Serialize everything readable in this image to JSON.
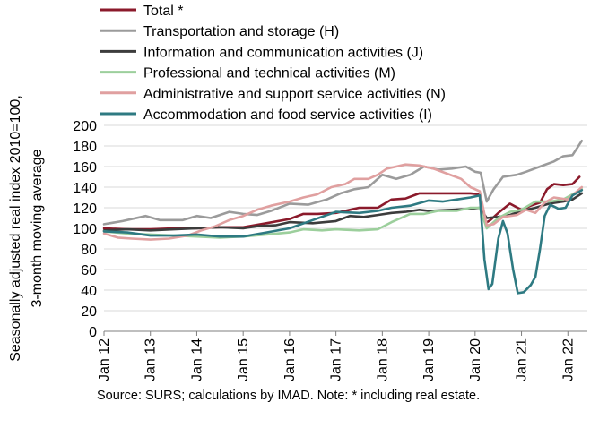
{
  "chart_data": {
    "type": "line",
    "ylabel_line1": "Seasonally adjusted real index 2010=100,",
    "ylabel_line2": "3-month moving average",
    "ylim": [
      0,
      200
    ],
    "yticks": [
      0,
      20,
      40,
      60,
      80,
      100,
      120,
      140,
      160,
      180,
      200
    ],
    "xlim": [
      2012.0,
      2022.42
    ],
    "xticks": [
      {
        "value": 2012,
        "label": "Jan 12"
      },
      {
        "value": 2013,
        "label": "Jan 13"
      },
      {
        "value": 2014,
        "label": "Jan 14"
      },
      {
        "value": 2015,
        "label": "Jan 15"
      },
      {
        "value": 2016,
        "label": "Jan 16"
      },
      {
        "value": 2017,
        "label": "Jan 17"
      },
      {
        "value": 2018,
        "label": "Jan 18"
      },
      {
        "value": 2019,
        "label": "Jan 19"
      },
      {
        "value": 2020,
        "label": "Jan 20"
      },
      {
        "value": 2021,
        "label": "Jan 21"
      },
      {
        "value": 2022,
        "label": "Jan 22"
      }
    ],
    "grid": "horizontal",
    "legend_position": "top",
    "series": [
      {
        "name": "Total *",
        "color": "#8b1a2b",
        "points": [
          [
            2012.0,
            100
          ],
          [
            2012.5,
            99
          ],
          [
            2013.0,
            99
          ],
          [
            2013.5,
            100
          ],
          [
            2014.0,
            100
          ],
          [
            2014.5,
            101
          ],
          [
            2015.0,
            101
          ],
          [
            2015.5,
            105
          ],
          [
            2016.0,
            109
          ],
          [
            2016.3,
            114
          ],
          [
            2016.6,
            114
          ],
          [
            2017.0,
            115
          ],
          [
            2017.5,
            120
          ],
          [
            2017.9,
            120
          ],
          [
            2018.2,
            128
          ],
          [
            2018.5,
            129
          ],
          [
            2018.8,
            134
          ],
          [
            2019.0,
            134
          ],
          [
            2019.5,
            134
          ],
          [
            2019.9,
            134
          ],
          [
            2020.1,
            133
          ],
          [
            2020.22,
            105
          ],
          [
            2020.33,
            108
          ],
          [
            2020.5,
            115
          ],
          [
            2020.75,
            124
          ],
          [
            2021.0,
            118
          ],
          [
            2021.2,
            122
          ],
          [
            2021.4,
            125
          ],
          [
            2021.55,
            138
          ],
          [
            2021.7,
            143
          ],
          [
            2021.9,
            142
          ],
          [
            2022.1,
            143
          ],
          [
            2022.25,
            150
          ]
        ]
      },
      {
        "name": "Transportation and storage (H)",
        "color": "#9b9b9b",
        "points": [
          [
            2012.0,
            104
          ],
          [
            2012.4,
            107
          ],
          [
            2012.9,
            112
          ],
          [
            2013.2,
            108
          ],
          [
            2013.7,
            108
          ],
          [
            2014.0,
            112
          ],
          [
            2014.3,
            110
          ],
          [
            2014.7,
            116
          ],
          [
            2015.0,
            114
          ],
          [
            2015.3,
            113
          ],
          [
            2015.6,
            117
          ],
          [
            2016.0,
            124
          ],
          [
            2016.4,
            123
          ],
          [
            2016.8,
            128
          ],
          [
            2017.1,
            134
          ],
          [
            2017.4,
            138
          ],
          [
            2017.7,
            140
          ],
          [
            2018.0,
            152
          ],
          [
            2018.3,
            148
          ],
          [
            2018.6,
            152
          ],
          [
            2018.9,
            160
          ],
          [
            2019.2,
            157
          ],
          [
            2019.5,
            158
          ],
          [
            2019.8,
            160
          ],
          [
            2020.0,
            155
          ],
          [
            2020.12,
            154
          ],
          [
            2020.25,
            126
          ],
          [
            2020.4,
            138
          ],
          [
            2020.6,
            150
          ],
          [
            2020.9,
            152
          ],
          [
            2021.1,
            155
          ],
          [
            2021.4,
            160
          ],
          [
            2021.7,
            165
          ],
          [
            2021.9,
            170
          ],
          [
            2022.1,
            171
          ],
          [
            2022.3,
            185
          ]
        ]
      },
      {
        "name": "Information and communication activities (J)",
        "color": "#3c3c3c",
        "points": [
          [
            2012.0,
            98
          ],
          [
            2012.5,
            99
          ],
          [
            2013.0,
            98
          ],
          [
            2013.5,
            99
          ],
          [
            2014.0,
            100
          ],
          [
            2014.5,
            101
          ],
          [
            2015.0,
            100
          ],
          [
            2015.3,
            102
          ],
          [
            2015.7,
            103
          ],
          [
            2016.0,
            106
          ],
          [
            2016.5,
            105
          ],
          [
            2017.0,
            107
          ],
          [
            2017.3,
            112
          ],
          [
            2017.6,
            111
          ],
          [
            2017.9,
            113
          ],
          [
            2018.2,
            115
          ],
          [
            2018.5,
            116
          ],
          [
            2018.8,
            118
          ],
          [
            2019.0,
            117
          ],
          [
            2019.5,
            118
          ],
          [
            2019.9,
            119
          ],
          [
            2020.1,
            120
          ],
          [
            2020.25,
            110
          ],
          [
            2020.5,
            111
          ],
          [
            2020.75,
            113
          ],
          [
            2021.0,
            117
          ],
          [
            2021.3,
            120
          ],
          [
            2021.6,
            124
          ],
          [
            2021.9,
            126
          ],
          [
            2022.1,
            128
          ],
          [
            2022.3,
            134
          ]
        ]
      },
      {
        "name": "Professional and technical activities (M)",
        "color": "#9ccf9c",
        "points": [
          [
            2012.0,
            97
          ],
          [
            2012.5,
            95
          ],
          [
            2013.0,
            94
          ],
          [
            2013.5,
            93
          ],
          [
            2014.0,
            92
          ],
          [
            2014.5,
            91
          ],
          [
            2015.0,
            92
          ],
          [
            2015.5,
            94
          ],
          [
            2016.0,
            96
          ],
          [
            2016.3,
            99
          ],
          [
            2016.7,
            98
          ],
          [
            2017.0,
            99
          ],
          [
            2017.5,
            98
          ],
          [
            2017.9,
            99
          ],
          [
            2018.2,
            106
          ],
          [
            2018.6,
            114
          ],
          [
            2018.9,
            114
          ],
          [
            2019.2,
            117
          ],
          [
            2019.6,
            117
          ],
          [
            2019.9,
            120
          ],
          [
            2020.1,
            120
          ],
          [
            2020.25,
            100
          ],
          [
            2020.5,
            110
          ],
          [
            2020.75,
            116
          ],
          [
            2021.0,
            118
          ],
          [
            2021.3,
            126
          ],
          [
            2021.6,
            126
          ],
          [
            2021.9,
            128
          ],
          [
            2022.1,
            133
          ],
          [
            2022.3,
            138
          ]
        ]
      },
      {
        "name": "Administrative and support service activities (N)",
        "color": "#e0a0a0",
        "points": [
          [
            2012.0,
            95
          ],
          [
            2012.3,
            91
          ],
          [
            2012.6,
            90
          ],
          [
            2013.0,
            89
          ],
          [
            2013.4,
            90
          ],
          [
            2013.8,
            93
          ],
          [
            2014.1,
            98
          ],
          [
            2014.4,
            102
          ],
          [
            2014.7,
            108
          ],
          [
            2015.0,
            112
          ],
          [
            2015.3,
            118
          ],
          [
            2015.6,
            122
          ],
          [
            2016.0,
            126
          ],
          [
            2016.3,
            130
          ],
          [
            2016.6,
            133
          ],
          [
            2016.9,
            140
          ],
          [
            2017.2,
            143
          ],
          [
            2017.4,
            148
          ],
          [
            2017.7,
            148
          ],
          [
            2017.9,
            152
          ],
          [
            2018.1,
            158
          ],
          [
            2018.3,
            160
          ],
          [
            2018.5,
            162
          ],
          [
            2018.8,
            161
          ],
          [
            2019.1,
            158
          ],
          [
            2019.4,
            153
          ],
          [
            2019.7,
            148
          ],
          [
            2019.9,
            140
          ],
          [
            2020.1,
            136
          ],
          [
            2020.25,
            103
          ],
          [
            2020.4,
            104
          ],
          [
            2020.6,
            111
          ],
          [
            2020.9,
            113
          ],
          [
            2021.1,
            118
          ],
          [
            2021.3,
            115
          ],
          [
            2021.5,
            125
          ],
          [
            2021.7,
            130
          ],
          [
            2022.0,
            128
          ],
          [
            2022.3,
            140
          ]
        ]
      },
      {
        "name": "Accommodation and food service activities (I)",
        "color": "#2e7a82",
        "points": [
          [
            2012.0,
            97
          ],
          [
            2012.5,
            96
          ],
          [
            2013.0,
            93
          ],
          [
            2013.5,
            93
          ],
          [
            2014.0,
            94
          ],
          [
            2014.5,
            92
          ],
          [
            2015.0,
            92
          ],
          [
            2015.5,
            96
          ],
          [
            2016.0,
            100
          ],
          [
            2016.5,
            108
          ],
          [
            2017.0,
            116
          ],
          [
            2017.5,
            115
          ],
          [
            2017.9,
            117
          ],
          [
            2018.2,
            120
          ],
          [
            2018.6,
            122
          ],
          [
            2019.0,
            127
          ],
          [
            2019.3,
            126
          ],
          [
            2019.6,
            128
          ],
          [
            2019.9,
            130
          ],
          [
            2020.1,
            132
          ],
          [
            2020.2,
            70
          ],
          [
            2020.29,
            41
          ],
          [
            2020.37,
            46
          ],
          [
            2020.5,
            90
          ],
          [
            2020.6,
            107
          ],
          [
            2020.7,
            95
          ],
          [
            2020.82,
            60
          ],
          [
            2020.92,
            37
          ],
          [
            2021.05,
            38
          ],
          [
            2021.2,
            45
          ],
          [
            2021.3,
            53
          ],
          [
            2021.4,
            80
          ],
          [
            2021.5,
            112
          ],
          [
            2021.62,
            123
          ],
          [
            2021.8,
            119
          ],
          [
            2021.95,
            120
          ],
          [
            2022.1,
            132
          ],
          [
            2022.3,
            137
          ]
        ]
      }
    ]
  },
  "source_text": "Source:  SURS; calculations by IMAD. Note: * including real estate."
}
